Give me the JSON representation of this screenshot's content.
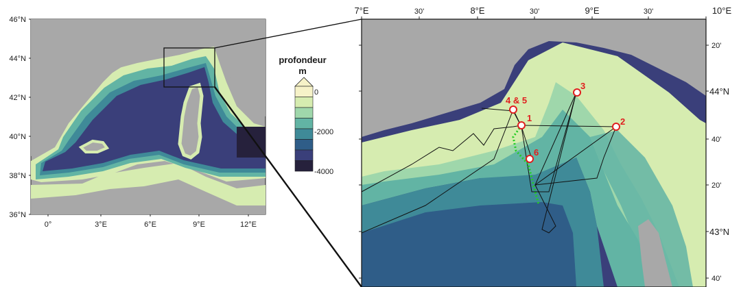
{
  "overview_map": {
    "lat_labels": [
      "46°N",
      "44°N",
      "42°N",
      "40°N",
      "38°N",
      "36°N"
    ],
    "lon_labels": [
      "0°",
      "3°E",
      "6°E",
      "9°E",
      "12°E"
    ]
  },
  "legend": {
    "title_line1": "profondeur",
    "title_line2": "m",
    "tick_labels": [
      "0",
      "-2000",
      "-4000"
    ],
    "colors": [
      "#f6f2c8",
      "#d6ecb0",
      "#9fd7ab",
      "#62b4a4",
      "#3f8a98",
      "#2f5d88",
      "#3a3f7a",
      "#26213c"
    ]
  },
  "zoom_map": {
    "lon_labels": [
      "7°E",
      "30'",
      "8°E",
      "30'",
      "9°E",
      "30'",
      "10°E"
    ],
    "lat_labels": [
      "20'",
      "44°N",
      "40'",
      "20'",
      "43°N",
      "40'"
    ]
  },
  "stations": [
    {
      "label": "1"
    },
    {
      "label": "2"
    },
    {
      "label": "3"
    },
    {
      "label": "4 & 5"
    },
    {
      "label": "6"
    }
  ],
  "colors": {
    "land": "#a8a8a8",
    "station_fill": "#ffffff",
    "station_stroke": "#e01e1e",
    "track": "#111111",
    "glider": "#22cc22"
  }
}
